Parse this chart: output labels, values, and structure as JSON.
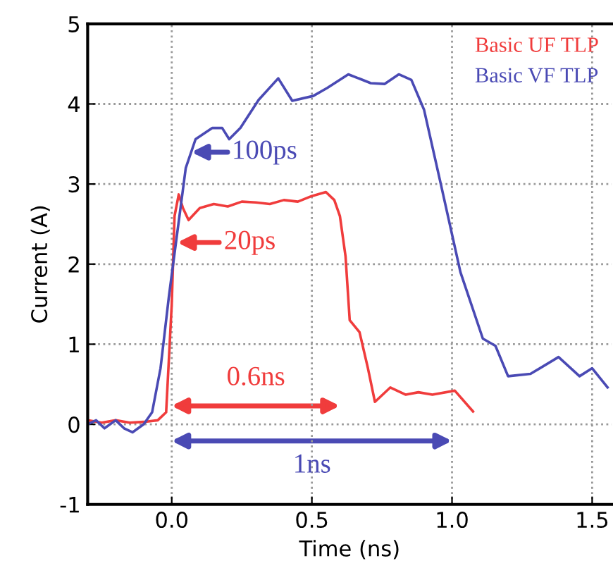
{
  "chart_data": {
    "type": "line",
    "xlabel": "Time (ns)",
    "ylabel": "Current (A)",
    "xlim": [
      -0.3,
      1.57
    ],
    "ylim": [
      -1,
      5
    ],
    "xticks": [
      {
        "value": 0,
        "label": "0.0"
      },
      {
        "value": 0.5,
        "label": "0.5"
      },
      {
        "value": 1,
        "label": "1.0"
      },
      {
        "value": 1.5,
        "label": "1.5"
      }
    ],
    "yticks": [
      -1,
      0,
      1,
      2,
      3,
      4,
      5
    ],
    "grid": true,
    "legend": "top right",
    "series": [
      {
        "name": "Basic UF TLP",
        "color": "#f03c3c",
        "x": [
          -0.3,
          -0.25,
          -0.2,
          -0.15,
          -0.1,
          -0.05,
          -0.02,
          0.0,
          0.01,
          0.025,
          0.04,
          0.06,
          0.1,
          0.15,
          0.2,
          0.25,
          0.3,
          0.35,
          0.4,
          0.45,
          0.5,
          0.55,
          0.58,
          0.6,
          0.62,
          0.635,
          0.67,
          0.7,
          0.725,
          0.78,
          0.835,
          0.88,
          0.93,
          1.01,
          1.075
        ],
        "values": [
          0.05,
          0.02,
          0.05,
          0.02,
          0.03,
          0.05,
          0.15,
          1.5,
          2.6,
          2.87,
          2.7,
          2.55,
          2.7,
          2.75,
          2.72,
          2.78,
          2.77,
          2.75,
          2.8,
          2.78,
          2.85,
          2.9,
          2.8,
          2.6,
          2.1,
          1.3,
          1.15,
          0.7,
          0.28,
          0.46,
          0.37,
          0.4,
          0.37,
          0.42,
          0.16
        ]
      },
      {
        "name": "Basic VF TLP",
        "color": "#4a4ab4",
        "x": [
          -0.3,
          -0.27,
          -0.24,
          -0.2,
          -0.17,
          -0.14,
          -0.1,
          -0.07,
          -0.04,
          -0.01,
          0.02,
          0.05,
          0.085,
          0.145,
          0.18,
          0.205,
          0.245,
          0.31,
          0.38,
          0.43,
          0.505,
          0.555,
          0.63,
          0.71,
          0.76,
          0.81,
          0.855,
          0.9,
          0.96,
          1.03,
          1.11,
          1.155,
          1.2,
          1.28,
          1.38,
          1.455,
          1.5,
          1.555
        ],
        "values": [
          0.0,
          0.05,
          -0.05,
          0.05,
          -0.05,
          -0.1,
          0.0,
          0.15,
          0.7,
          1.6,
          2.4,
          3.2,
          3.56,
          3.7,
          3.7,
          3.56,
          3.7,
          4.05,
          4.32,
          4.04,
          4.1,
          4.2,
          4.37,
          4.26,
          4.25,
          4.37,
          4.3,
          3.93,
          3.0,
          1.9,
          1.07,
          0.98,
          0.6,
          0.63,
          0.84,
          0.6,
          0.7,
          0.46
        ]
      }
    ],
    "annotations": [
      "100ps",
      "20ps",
      "0.6ns",
      "1ns"
    ]
  }
}
